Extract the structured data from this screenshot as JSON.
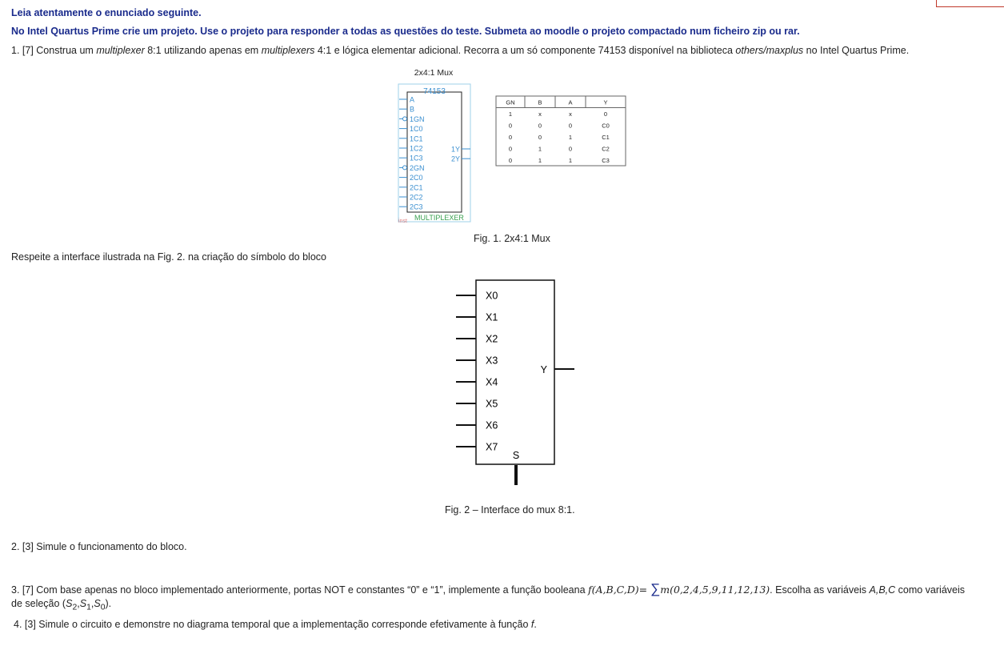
{
  "header": {
    "instruction": "Leia atentamente o enunciado seguinte.",
    "task": "No Intel Quartus Prime crie um projeto. Use o projeto para responder a todas as questões do teste. Submeta ao moodle o projeto compactado num ficheiro zip ou rar."
  },
  "question1": {
    "parts": [
      "1. [7] Construa um ",
      "multiplexer",
      " 8:1 utilizando apenas em ",
      "multiplexers",
      " 4:1 e lógica elementar adicional. Recorra a um só componente 74153 disponível na biblioteca ",
      "others/maxplus",
      " no Intel Quartus Prime."
    ]
  },
  "figure1": {
    "title": "2x4:1 Mux",
    "component": "74153",
    "left_pins": [
      "A",
      "B",
      "1GN",
      "1C0",
      "1C1",
      "1C2",
      "1C3",
      "2GN",
      "2C0",
      "2C1",
      "2C2",
      "2C3"
    ],
    "right_pins": [
      "1Y",
      "2Y"
    ],
    "instance": "inst",
    "symbol_name": "MULTIPLEXER",
    "table": {
      "header": [
        "GN",
        "B",
        "A",
        "Y"
      ],
      "rows": [
        [
          "1",
          "x",
          "x",
          "0"
        ],
        [
          "0",
          "0",
          "0",
          "C0"
        ],
        [
          "0",
          "0",
          "1",
          "C1"
        ],
        [
          "0",
          "1",
          "0",
          "C2"
        ],
        [
          "0",
          "1",
          "1",
          "C3"
        ]
      ]
    },
    "caption": "Fig. 1. 2x4:1 Mux"
  },
  "instruction": "Respeite a interface ilustrada na Fig. 2. na criação do símbolo do bloco",
  "figure2": {
    "inputs": [
      "X0",
      "X1",
      "X2",
      "X3",
      "X4",
      "X5",
      "X6",
      "X7"
    ],
    "output": "Y",
    "select": "S",
    "caption": "Fig. 2 – Interface do mux 8:1."
  },
  "question2": "2. [3] Simule o funcionamento do bloco.",
  "question3": {
    "line1": [
      "3. [7] Com base apenas no bloco implementado anteriormente, portas NOT e constantes “0” e “1”, implemente a função booleana ",
      "f(A,B,C,D)= ",
      "∑",
      "m(0,2,4,5,9,11,12,13)",
      ". Escolha as variáveis ",
      "A,B,C",
      " como variáveis"
    ],
    "line2": [
      "de seleção (",
      "S",
      "2",
      ",",
      "S",
      "1",
      ",",
      "S",
      "0",
      ")."
    ]
  },
  "question4": {
    "parts": [
      "4. [3] Simule o circuito e demonstre no diagrama temporal que a implementação corresponde efetivamente à função ",
      "f",
      "."
    ]
  }
}
